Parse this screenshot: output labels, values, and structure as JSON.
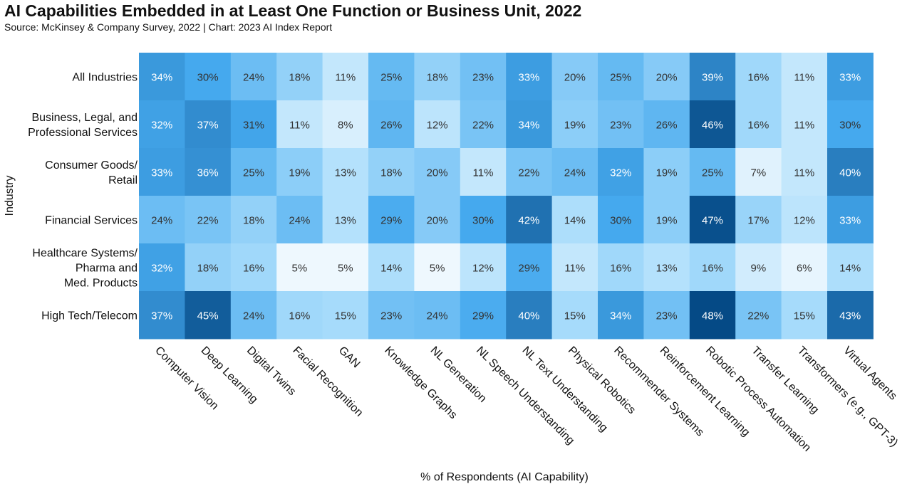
{
  "title": "AI Capabilities Embedded in at Least One Function or Business Unit, 2022",
  "subtitle": "Source: McKinsey & Company Survey, 2022 | Chart: 2023 AI Index Report",
  "chart_data": {
    "type": "heatmap",
    "ylabel": "Industry",
    "xlabel": "% of Respondents (AI Capability)",
    "columns": [
      "Computer Vision",
      "Deep Learning",
      "Digital Twins",
      "Facial Recognition",
      "GAN",
      "Knowledge Graphs",
      "NL Generation",
      "NL Speech Understanding",
      "NL Text Understanding",
      "Physical Robotics",
      "Recommender Systems",
      "Reinforcement Learning",
      "Robotic Process Automation",
      "Transfer Learning",
      "Transformers (e.g., GPT-3)",
      "Virtual Agents"
    ],
    "rows": [
      [
        "All Industries"
      ],
      [
        "Business, Legal, and",
        "Professional Services"
      ],
      [
        "Consumer Goods/",
        "Retail"
      ],
      [
        "Financial Services"
      ],
      [
        "Healthcare Systems/",
        "Pharma and",
        "Med. Products"
      ],
      [
        "High Tech/Telecom"
      ]
    ],
    "values": [
      [
        34,
        30,
        24,
        18,
        11,
        25,
        18,
        23,
        33,
        20,
        25,
        20,
        39,
        16,
        11,
        33
      ],
      [
        32,
        37,
        31,
        11,
        8,
        26,
        12,
        22,
        34,
        19,
        23,
        26,
        46,
        16,
        11,
        30
      ],
      [
        33,
        36,
        25,
        19,
        13,
        18,
        20,
        11,
        22,
        24,
        32,
        19,
        25,
        7,
        11,
        40
      ],
      [
        24,
        22,
        18,
        24,
        13,
        29,
        20,
        30,
        42,
        14,
        30,
        19,
        47,
        17,
        12,
        33
      ],
      [
        32,
        18,
        16,
        5,
        5,
        14,
        5,
        12,
        29,
        11,
        16,
        13,
        16,
        9,
        6,
        14
      ],
      [
        37,
        45,
        24,
        16,
        15,
        23,
        24,
        29,
        40,
        15,
        34,
        23,
        48,
        22,
        15,
        43
      ]
    ],
    "value_suffix": "%",
    "color_scale": [
      "#eef8fe",
      "#a6dbfb",
      "#45a9ee",
      "#2d84c6",
      "#054a86"
    ]
  }
}
